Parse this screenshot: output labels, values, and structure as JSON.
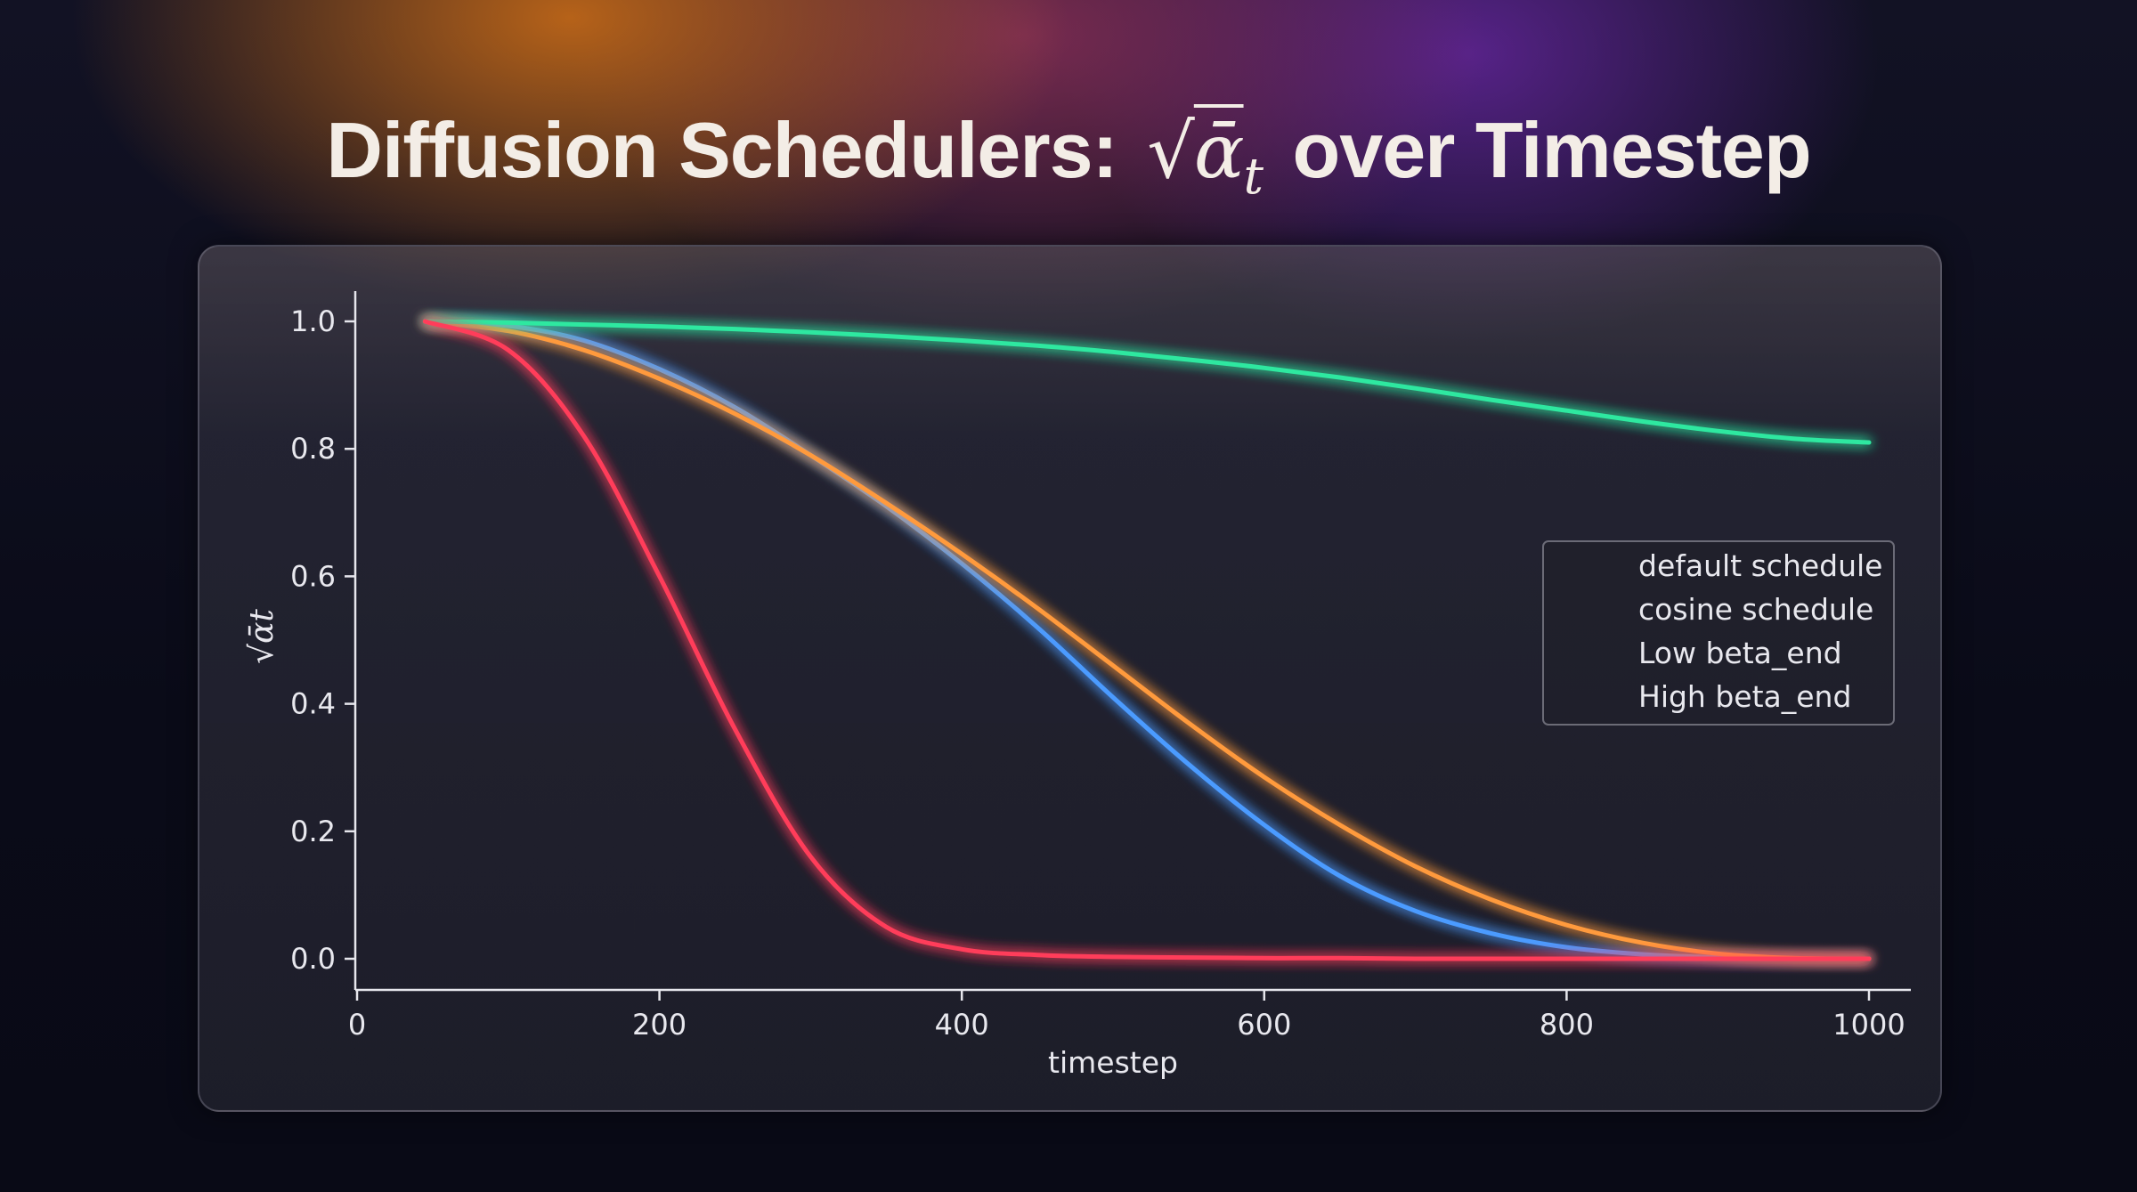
{
  "title": {
    "before": "Diffusion Schedulers:",
    "math_symbol": "√",
    "math_var": "ᾱ",
    "math_sub": "t",
    "after": "over Timestep"
  },
  "chart_data": {
    "type": "line",
    "title": "",
    "xlabel": "timestep",
    "ylabel": "√ᾱt",
    "xlim": [
      0,
      1000
    ],
    "ylim": [
      0.0,
      1.0
    ],
    "xticks": [
      0,
      200,
      400,
      600,
      800,
      1000
    ],
    "xtick_labels": [
      "0",
      "200",
      "400",
      "600",
      "800",
      "1000"
    ],
    "yticks": [
      0.0,
      0.2,
      0.4,
      0.6,
      0.8,
      1.0
    ],
    "ytick_labels": [
      "0.0",
      "0.2",
      "0.4",
      "0.6",
      "0.8",
      "1.0"
    ],
    "grid": false,
    "legend_position": "center-right",
    "x": [
      45,
      100,
      150,
      200,
      250,
      300,
      350,
      400,
      450,
      500,
      550,
      600,
      650,
      700,
      750,
      800,
      850,
      900,
      950,
      1000
    ],
    "series": [
      {
        "name": "default schedule",
        "color": "#4c9bff",
        "values": [
          1.0,
          0.993,
          0.97,
          0.925,
          0.865,
          0.79,
          0.71,
          0.62,
          0.52,
          0.41,
          0.305,
          0.21,
          0.13,
          0.075,
          0.04,
          0.018,
          0.007,
          0.002,
          0.0,
          0.0
        ]
      },
      {
        "name": "cosine schedule",
        "color": "#ff9a3c",
        "values": [
          1.0,
          0.985,
          0.955,
          0.91,
          0.855,
          0.79,
          0.715,
          0.635,
          0.55,
          0.46,
          0.37,
          0.285,
          0.21,
          0.145,
          0.093,
          0.053,
          0.025,
          0.008,
          0.001,
          0.0
        ]
      },
      {
        "name": "Low beta_end",
        "color": "#2ee8a0",
        "values": [
          1.0,
          0.998,
          0.995,
          0.992,
          0.988,
          0.983,
          0.977,
          0.97,
          0.962,
          0.952,
          0.94,
          0.927,
          0.912,
          0.895,
          0.877,
          0.86,
          0.843,
          0.828,
          0.816,
          0.81
        ]
      },
      {
        "name": "High beta_end",
        "color": "#ff3d5a",
        "values": [
          1.0,
          0.955,
          0.82,
          0.6,
          0.36,
          0.16,
          0.05,
          0.015,
          0.006,
          0.003,
          0.002,
          0.001,
          0.001,
          0.0,
          0.0,
          0.0,
          0.0,
          0.0,
          0.0,
          0.0
        ]
      }
    ]
  }
}
